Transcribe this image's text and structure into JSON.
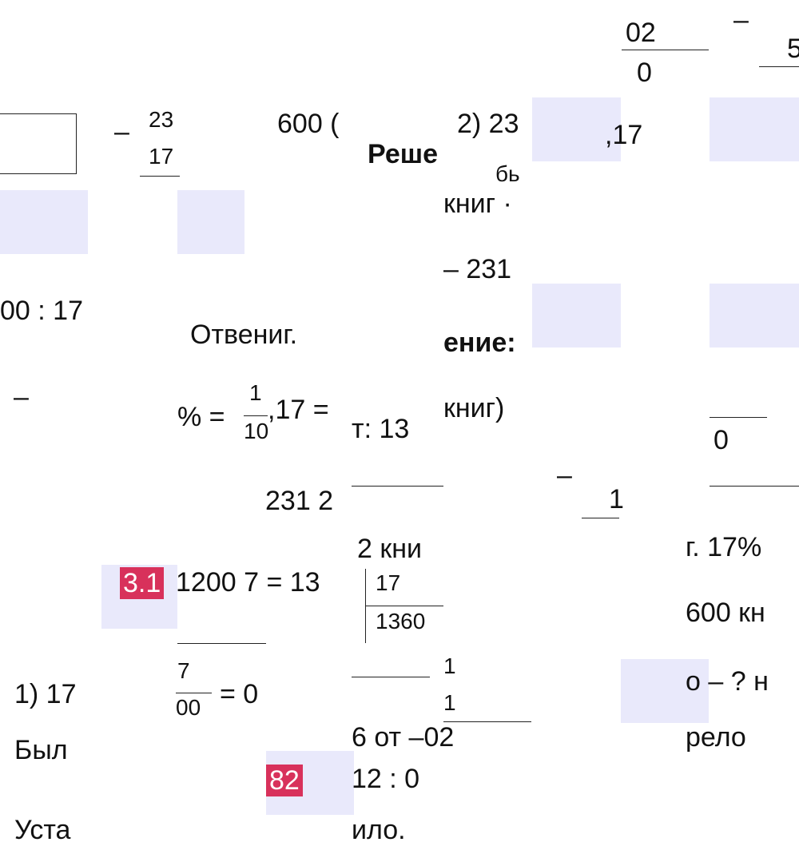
{
  "fragments": [
    "02",
    "0",
    "–",
    "5",
    "–",
    "23",
    "17",
    "600 (",
    "Реше",
    "2) 23",
    ",17",
    "бь",
    "книг ·",
    "– 231",
    "00 : 17",
    "Отвениг.",
    "ение:",
    "–",
    "% =",
    "1",
    "10",
    ",17 =",
    "т: 13",
    "книг)",
    "0",
    "–",
    "1",
    "231 2",
    "2 кни",
    "г. 17%",
    "1200 7 = 13",
    "17",
    "1360",
    "600 кн",
    "7",
    "00",
    "= 0",
    "1) 17",
    "1",
    "1",
    "о – ? н",
    "Был",
    "6 от –02",
    "рело",
    "12 : 0",
    "Уста",
    "ило."
  ],
  "badges": [
    "3.1",
    "82"
  ]
}
